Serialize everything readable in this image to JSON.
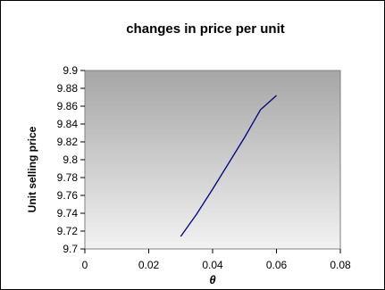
{
  "chart_data": {
    "type": "line",
    "title": "changes in price per unit",
    "xlabel": "θ",
    "ylabel": "Unit selling price",
    "xlim": [
      0,
      0.08
    ],
    "ylim": [
      9.7,
      9.9
    ],
    "x_ticks": [
      "0",
      "0.02",
      "0.04",
      "0.06",
      "0.08"
    ],
    "y_ticks": [
      "9.7",
      "9.72",
      "9.74",
      "9.76",
      "9.78",
      "9.8",
      "9.82",
      "9.84",
      "9.86",
      "9.88",
      "9.9"
    ],
    "series": [
      {
        "color": "#000080",
        "x": [
          0.03,
          0.035,
          0.04,
          0.045,
          0.05,
          0.055,
          0.06
        ],
        "y": [
          9.714,
          9.739,
          9.767,
          9.796,
          9.825,
          9.856,
          9.872
        ]
      }
    ],
    "grid": false,
    "legend": "none"
  }
}
